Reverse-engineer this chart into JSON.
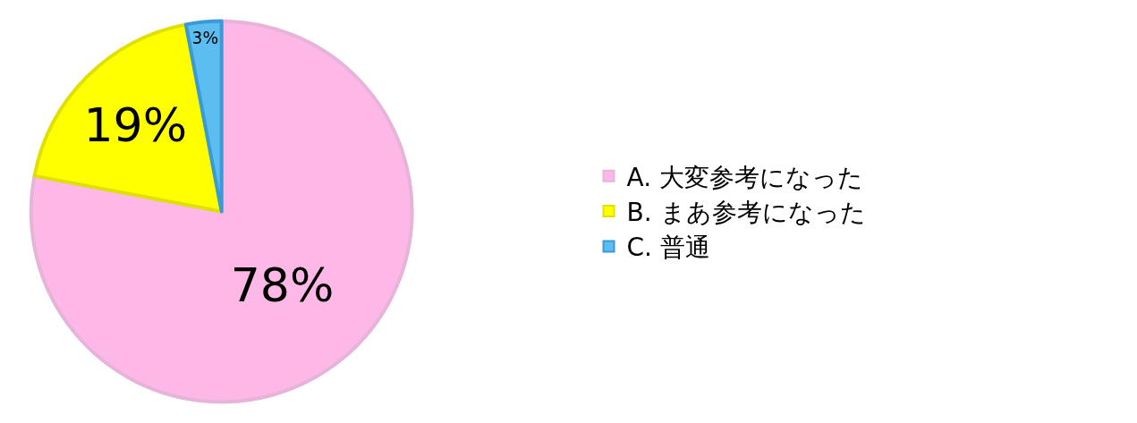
{
  "chart_data": {
    "type": "pie",
    "categories": [
      "A. 大変参考になった",
      "B. まあ参考になった",
      "C. 普通"
    ],
    "values": [
      78,
      19,
      3
    ],
    "value_labels": [
      "78%",
      "19%",
      "3%"
    ],
    "colors": [
      "#fdb8e8",
      "#ffff00",
      "#5bbdf0"
    ],
    "legend": "right"
  }
}
